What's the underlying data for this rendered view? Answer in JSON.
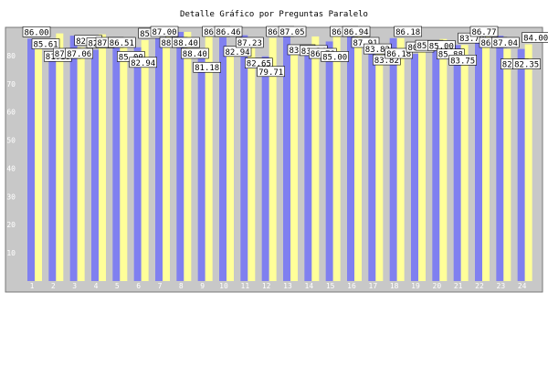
{
  "chart_data": {
    "type": "bar",
    "title": "Detalle Gráfico por Preguntas Paralelo",
    "xlabel": "",
    "ylabel": "",
    "categories": [
      "1",
      "2",
      "3",
      "4",
      "5",
      "6",
      "7",
      "8",
      "9",
      "10",
      "11",
      "12",
      "13",
      "14",
      "15",
      "16",
      "17",
      "18",
      "19",
      "20",
      "21",
      "22",
      "23",
      "24"
    ],
    "y_ticks": [
      10,
      20,
      30,
      40,
      50,
      60,
      70,
      80
    ],
    "ylim": [
      0,
      90
    ],
    "series": [
      {
        "color": "#8080f0",
        "values": [
          86.0,
          81.18,
          87.06,
          82.06,
          86.51,
          82.94,
          87.0,
          88.4,
          81.18,
          86.46,
          87.23,
          79.71,
          87.05,
          83.24,
          85.0,
          86.94,
          83.82,
          86.18,
          80.59,
          85.0,
          83.75,
          86.77,
          87.04,
          82.35
        ]
      },
      {
        "color": "#ffff99",
        "values": [
          85.61,
          87.86,
          82.94,
          87.54,
          85.0,
          85.47,
          88.47,
          88.4,
          86.8,
          82.94,
          82.65,
          86.25,
          83.53,
          86.78,
          86.94,
          87.91,
          83.82,
          86.18,
          85.1,
          85.88,
          83.79,
          86.77,
          82.35,
          84.0
        ]
      }
    ],
    "grid": false,
    "legend": "none",
    "plot_background": "#c8c8c8"
  }
}
